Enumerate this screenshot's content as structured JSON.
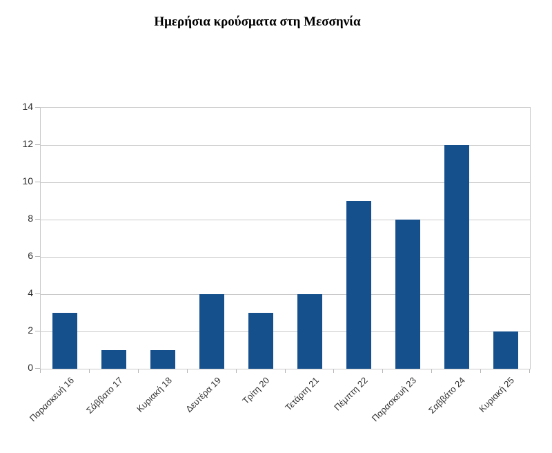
{
  "chart_data": {
    "type": "bar",
    "title": "Ημερήσια κρούσματα στη Μεσσηνία",
    "categories": [
      "Παρασκευή 16",
      "Σάββατο 17",
      "Κυριακή 18",
      "Δευτέρα 19",
      "Τρίτη 20",
      "Τετάρτη 21",
      "Πέμπτη 22",
      "Παρασκευή 23",
      "Σαββάτο 24",
      "Κυριακή 25"
    ],
    "values": [
      3,
      1,
      1,
      4,
      3,
      4,
      9,
      8,
      12,
      2
    ],
    "xlabel": "",
    "ylabel": "",
    "ylim": [
      0,
      14
    ],
    "yticks": [
      0,
      2,
      4,
      6,
      8,
      10,
      12,
      14
    ],
    "grid": true,
    "legend": "none",
    "bar_color": "#15508C",
    "gridline_color": "#c9c9c9",
    "axis_line_color": "#c9c9c9",
    "tick_mark_color": "#b5b5b5",
    "axis_label_color": "#2d2d2d",
    "title_color": "#000000",
    "background_color": "#ffffff"
  }
}
